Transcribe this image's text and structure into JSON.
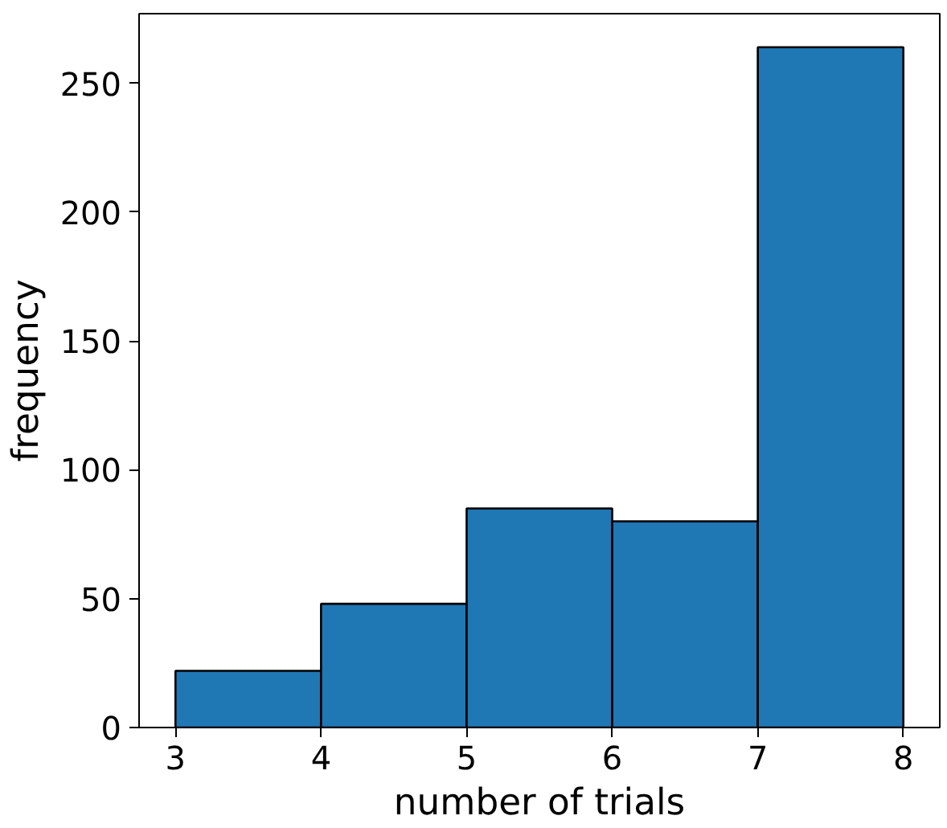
{
  "chart_data": {
    "type": "histogram",
    "xlabel": "number of trials",
    "ylabel": "frequency",
    "bins": [
      3,
      4,
      5,
      6,
      7,
      8
    ],
    "values": [
      22,
      48,
      85,
      80,
      264
    ],
    "color": "#1f77b4",
    "xlim": [
      2.75,
      8.25
    ],
    "ylim": [
      0,
      277
    ],
    "xticks": [
      3,
      4,
      5,
      6,
      7,
      8
    ],
    "yticks": [
      0,
      50,
      100,
      150,
      200,
      250
    ],
    "grid": false
  }
}
